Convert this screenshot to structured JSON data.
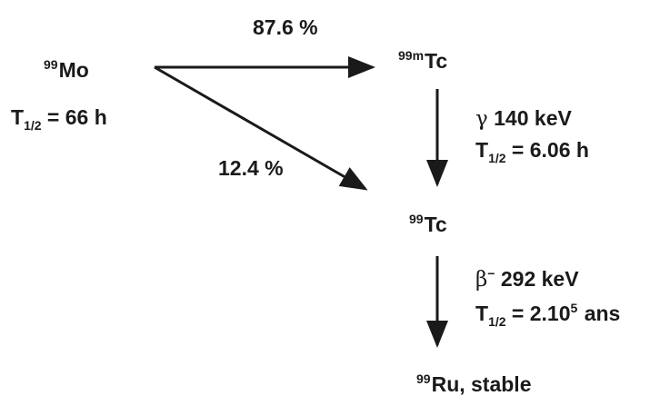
{
  "nodes": {
    "mo": {
      "mass": "99",
      "symbol": "Mo",
      "half_life_prefix": "T",
      "half_life_sub": "1/2",
      "half_life_value": " = 66 h"
    },
    "tc99m": {
      "mass": "99m",
      "symbol": "Tc"
    },
    "tc99": {
      "mass": "99",
      "symbol": "Tc"
    },
    "ru": {
      "mass": "99",
      "symbol": "Ru, stable"
    }
  },
  "transitions": {
    "mo_to_tc99m": {
      "label": "87.6 %"
    },
    "mo_to_tc99": {
      "label": "12.4 %"
    },
    "tc99m_to_tc99": {
      "greek": "γ",
      "energy": " 140 keV",
      "half_life_prefix": "T",
      "half_life_sub": "1/2",
      "half_life_value": " = 6.06 h"
    },
    "tc99_to_ru": {
      "greek": "β",
      "greek_sup": "−",
      "energy": " 292 keV",
      "half_life_prefix": "T",
      "half_life_sub": "1/2",
      "half_life_value": " = 2.10",
      "half_life_exp": "5",
      "half_life_unit": " ans"
    }
  },
  "colors": {
    "ink": "#1a1a1a",
    "background": "#ffffff"
  }
}
